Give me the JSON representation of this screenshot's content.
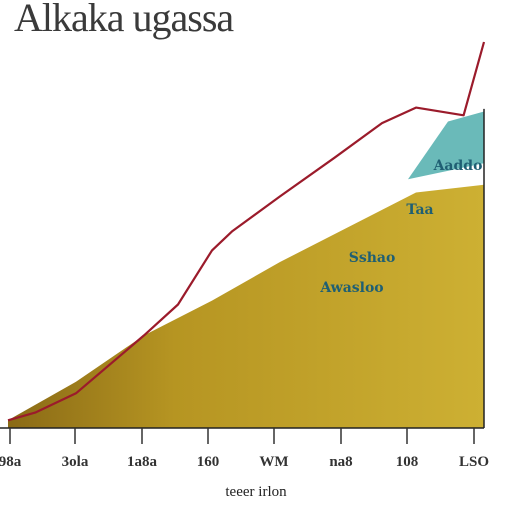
{
  "chart_data": {
    "type": "area",
    "title": "Alkaka ugassa",
    "xlabel": "teeer irlon",
    "ylabel": "",
    "x_tick_labels": [
      "98a",
      "3ola",
      "1a8a",
      "160",
      "WM",
      "na8",
      "108",
      "LSO"
    ],
    "ylim": [
      0,
      100
    ],
    "series": [
      {
        "kind": "area",
        "fill_color": "#c2a423",
        "x": [
          0,
          1,
          2,
          3,
          4,
          5,
          6,
          7
        ],
        "values": [
          2,
          12,
          24,
          33,
          43,
          52,
          61,
          63
        ]
      },
      {
        "kind": "line",
        "color": "#9b1b2b",
        "x": [
          0,
          0.4,
          1,
          2,
          2.5,
          3,
          3.3,
          4,
          4.8,
          5.5,
          6,
          6.7,
          7
        ],
        "values": [
          2,
          4,
          9,
          24,
          32,
          46,
          51,
          60,
          70,
          79,
          83,
          81,
          100
        ]
      },
      {
        "kind": "area",
        "fill_color": "#5ab3b1",
        "x": [
          5,
          7
        ],
        "values": [
          66,
          82
        ]
      }
    ],
    "annotations": [
      "Aaddo",
      "Taa",
      "Sshao",
      "Awasloo"
    ],
    "grid": false,
    "legend": "none"
  }
}
